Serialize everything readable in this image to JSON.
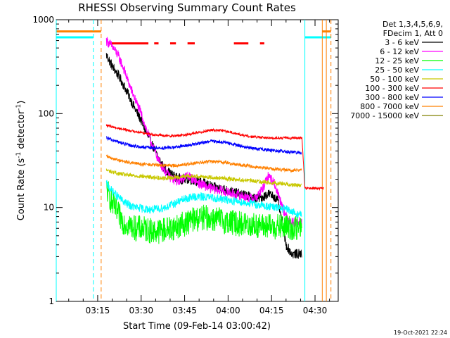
{
  "chart_data": {
    "type": "line",
    "title": "RHESSI Observing Summary Count Rates",
    "xlabel": "Start Time (09-Feb-14 03:00:42)",
    "ylabel_parts": [
      "Count Rate (s",
      "-1",
      " detector",
      "-1",
      ")"
    ],
    "yscale": "log",
    "ylim": [
      1,
      1000
    ],
    "xlim_min": [
      0.7,
      98.0
    ],
    "y_ticks": [
      {
        "value": 1,
        "label": "1"
      },
      {
        "value": 10,
        "label": "10"
      },
      {
        "value": 100,
        "label": "100"
      },
      {
        "value": 1000,
        "label": "1000"
      }
    ],
    "x_ticks": [
      {
        "t": 15,
        "label": "03:15"
      },
      {
        "t": 30,
        "label": "03:30"
      },
      {
        "t": 45,
        "label": "03:45"
      },
      {
        "t": 60,
        "label": "04:00"
      },
      {
        "t": 75,
        "label": "04:15"
      },
      {
        "t": 90,
        "label": "04:30"
      }
    ],
    "legend_header": [
      "Det 1,3,4,5,6,9,",
      "FDecim 1, Att 0"
    ],
    "legend_placement": "outside-right",
    "footer": "19-Oct-2021 22:24",
    "series": [
      {
        "name": "3 - 6 keV",
        "color": "#000000",
        "x": [
          18,
          20,
          22,
          24,
          26,
          28,
          30,
          32,
          34,
          36,
          38,
          40,
          42,
          44,
          46,
          48,
          50,
          52,
          54,
          56,
          58,
          60,
          62,
          64,
          66,
          68,
          70,
          72,
          74,
          76,
          77,
          78,
          80,
          82,
          84,
          85.5
        ],
        "y": [
          420,
          320,
          260,
          200,
          150,
          110,
          85,
          60,
          45,
          33,
          26,
          23,
          21,
          20,
          20,
          19.5,
          19,
          18,
          17,
          16,
          16,
          15,
          14.5,
          14,
          13.5,
          13,
          12.5,
          13,
          14,
          13,
          12,
          9,
          4,
          3.2,
          3.2,
          3.2
        ]
      },
      {
        "name": "6 - 12 keV",
        "color": "#ff00ff",
        "x": [
          18,
          20,
          22,
          24,
          26,
          28,
          30,
          32,
          34,
          36,
          38,
          40,
          42,
          44,
          46,
          48,
          50,
          52,
          54,
          56,
          58,
          60,
          62,
          64,
          66,
          68,
          70,
          72,
          74,
          76,
          78,
          80,
          82,
          84,
          85.5
        ],
        "y": [
          600,
          520,
          420,
          300,
          200,
          140,
          100,
          65,
          45,
          32,
          25,
          21,
          19,
          20,
          22,
          20,
          18,
          17,
          16,
          15.5,
          15,
          14.5,
          14,
          13.5,
          13,
          12.5,
          13,
          16,
          22,
          18,
          12,
          8,
          7,
          7,
          7
        ]
      },
      {
        "name": "12 - 25 keV",
        "color": "#00ff00",
        "x": [
          18,
          20,
          22,
          24,
          26,
          28,
          30,
          32,
          34,
          36,
          38,
          40,
          44,
          48,
          52,
          56,
          60,
          64,
          68,
          72,
          76,
          80,
          82,
          84,
          85.5
        ],
        "y": [
          16,
          11,
          8.5,
          7,
          6.5,
          6,
          6,
          5.8,
          5.6,
          5.6,
          5.8,
          6,
          6.5,
          7.5,
          7.8,
          7.5,
          7,
          6.7,
          6.5,
          6.3,
          6.2,
          6.2,
          6,
          6,
          6
        ]
      },
      {
        "name": "25 - 50 keV",
        "color": "#00ffff",
        "x": [
          18,
          20,
          22,
          24,
          26,
          28,
          30,
          32,
          34,
          36,
          38,
          40,
          44,
          48,
          52,
          56,
          60,
          64,
          68,
          72,
          76,
          80,
          82,
          84,
          85.5
        ],
        "y": [
          18,
          15,
          13,
          11.5,
          10.5,
          10,
          9.8,
          9.6,
          9.5,
          9.6,
          10,
          10.5,
          12,
          13,
          13,
          12.5,
          12,
          11.5,
          11,
          10.5,
          10,
          9.6,
          9,
          8.5,
          8.5
        ]
      },
      {
        "name": "50 - 100 keV",
        "color": "#c8c800",
        "x": [
          18,
          22,
          26,
          30,
          34,
          38,
          42,
          46,
          50,
          54,
          58,
          62,
          66,
          70,
          74,
          78,
          82,
          85.5
        ],
        "y": [
          25,
          23,
          22,
          21.5,
          21,
          20.5,
          21,
          21.5,
          21.5,
          21,
          20.5,
          20,
          19.5,
          19,
          18.5,
          18,
          17.5,
          17
        ]
      },
      {
        "name": "100 - 300 keV",
        "color": "#ff0000",
        "x": [
          18,
          22,
          26,
          30,
          34,
          38,
          42,
          46,
          50,
          54,
          58,
          62,
          66,
          70,
          74,
          78,
          82,
          85.5,
          86.5,
          93
        ],
        "y": [
          75,
          70,
          66,
          63,
          60,
          58,
          58,
          60,
          63,
          67,
          66,
          62,
          58,
          56,
          55,
          55,
          55,
          55,
          16,
          16
        ]
      },
      {
        "name": "300 - 800 keV",
        "color": "#0000ff",
        "x": [
          18,
          22,
          26,
          30,
          34,
          38,
          42,
          46,
          50,
          54,
          58,
          62,
          66,
          70,
          74,
          78,
          82,
          85.5
        ],
        "y": [
          55,
          50,
          46,
          44,
          43,
          43,
          44,
          46,
          48,
          51,
          50,
          47,
          44,
          42,
          41,
          40,
          39,
          38
        ]
      },
      {
        "name": "800 - 7000 keV",
        "color": "#ff8000",
        "x": [
          18,
          22,
          26,
          30,
          34,
          38,
          42,
          46,
          50,
          54,
          58,
          62,
          66,
          70,
          74,
          78,
          82,
          85.5
        ],
        "y": [
          35,
          32,
          30,
          29,
          28.5,
          28,
          28,
          29,
          30,
          31,
          30.5,
          29,
          28,
          27,
          26,
          25.5,
          25,
          25
        ]
      },
      {
        "name": "7000 - 15000 keV",
        "color": "#808000",
        "x": [],
        "y": []
      }
    ],
    "attenuator_level": {
      "color": "#ff8000",
      "value": 750,
      "segments": [
        [
          0.7,
          16.2
        ],
        [
          92.5,
          95.5
        ]
      ]
    },
    "decimation_level": {
      "color": "#00ffff",
      "value": 650,
      "segments": [
        [
          0.7,
          13.5
        ],
        [
          86.5,
          95.5
        ]
      ]
    },
    "eclipse_marks": {
      "color": "#ff0000",
      "value": 560,
      "segments": [
        [
          18.5,
          32.5
        ],
        [
          34.5,
          36
        ],
        [
          40,
          42
        ],
        [
          46,
          48.5
        ],
        [
          62,
          67
        ],
        [
          71,
          72.5
        ]
      ]
    },
    "vlines": [
      {
        "t": 0.7,
        "color": "#00ffff",
        "style": "solid"
      },
      {
        "t": 13.5,
        "color": "#00ffff",
        "style": "dashed"
      },
      {
        "t": 16.2,
        "color": "#ff8000",
        "style": "dashed"
      },
      {
        "t": 86.5,
        "color": "#00ffff",
        "style": "solid"
      },
      {
        "t": 92.5,
        "color": "#ff8000",
        "style": "solid"
      },
      {
        "t": 93.9,
        "color": "#ff8000",
        "style": "solid"
      },
      {
        "t": 95.5,
        "color": "#ff8000",
        "style": "dashed"
      }
    ]
  }
}
